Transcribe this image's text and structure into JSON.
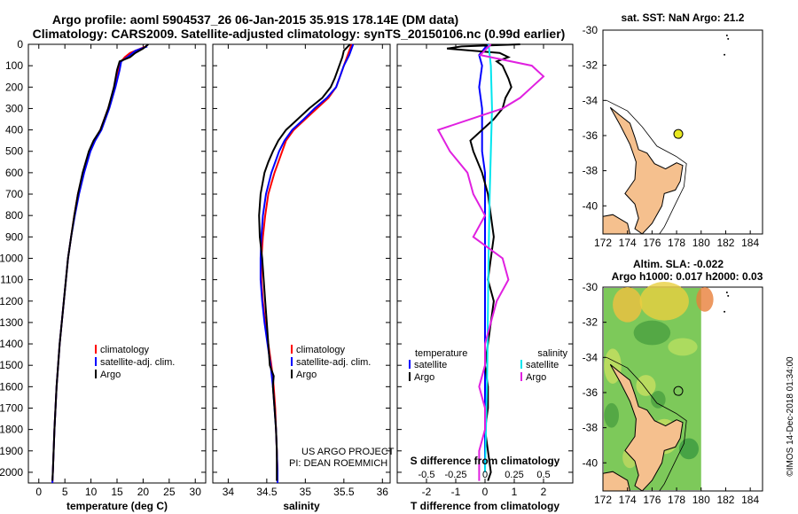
{
  "header": {
    "line1": "Argo profile: aoml 5904537_26 06-Jan-2015 35.91S 178.14E (DM data)",
    "line2": "Climatology: CARS2009. Satellite-adjusted climatology: synTS_20150106.nc (0.99d earlier)"
  },
  "credits": {
    "project": "US ARGO PROJECT",
    "pi": "PI: DEAN ROEMMICH",
    "imos": "©IMOS 14-Dec-2018 01:34:00"
  },
  "colors": {
    "climatology": "#ff0000",
    "satellite": "#0000ff",
    "argo": "#000000",
    "sal_satellite": "#00e5ee",
    "sal_argo": "#e020e0",
    "land": "#f5c08e",
    "marker": "#e8e820"
  },
  "chart_data": [
    {
      "id": "temperature",
      "type": "line",
      "xlabel": "temperature (deg C)",
      "ylabel": "",
      "xlim": [
        -2,
        32
      ],
      "ylim": [
        2050,
        0
      ],
      "xticks": [
        0,
        5,
        10,
        15,
        20,
        25,
        30
      ],
      "yticks": [
        0,
        100,
        200,
        300,
        400,
        500,
        600,
        700,
        800,
        900,
        1000,
        1100,
        1200,
        1300,
        1400,
        1500,
        1600,
        1700,
        1800,
        1900,
        2000
      ],
      "legend": [
        "climatology",
        "satellite-adj. clim.",
        "Argo"
      ],
      "series": [
        {
          "name": "climatology",
          "color": "#ff0000",
          "p": [
            10,
            40,
            60,
            80,
            120,
            200,
            300,
            400,
            450,
            500,
            600,
            700,
            800,
            900,
            1000,
            1200,
            1400,
            1600,
            1800,
            2000,
            2050
          ],
          "x": [
            20.5,
            17.5,
            16.5,
            15.8,
            15.3,
            14.5,
            13.3,
            11.8,
            10.6,
            9.7,
            8.5,
            7.5,
            6.8,
            6.2,
            5.6,
            4.8,
            4.0,
            3.4,
            3.0,
            2.7,
            2.6
          ]
        },
        {
          "name": "satellite-adj. clim.",
          "color": "#0000ff",
          "p": [
            10,
            30,
            60,
            80,
            120,
            200,
            300,
            400,
            450,
            500,
            600,
            700,
            800,
            900,
            1000,
            1200,
            1400,
            1600,
            1800,
            2000,
            2050
          ],
          "x": [
            20.8,
            18.5,
            17,
            15.8,
            15.5,
            14.7,
            13.5,
            12,
            10.8,
            9.9,
            8.7,
            7.7,
            6.9,
            6.2,
            5.6,
            4.8,
            4.0,
            3.4,
            3.0,
            2.7,
            2.6
          ]
        },
        {
          "name": "Argo",
          "color": "#000000",
          "p": [
            0,
            20,
            40,
            60,
            80,
            120,
            200,
            300,
            400,
            450,
            500,
            600,
            700,
            800,
            900,
            1000,
            1200,
            1400,
            1600,
            1800,
            2000,
            2040
          ],
          "x": [
            21,
            20,
            18.5,
            17.5,
            15.5,
            15.0,
            14.4,
            13.3,
            11.8,
            10.5,
            9.6,
            8.4,
            7.5,
            6.8,
            6.2,
            5.6,
            4.8,
            4.0,
            3.4,
            3.0,
            2.7,
            2.6
          ]
        }
      ]
    },
    {
      "id": "salinity",
      "type": "line",
      "xlabel": "salinity",
      "ylabel": "",
      "xlim": [
        33.8,
        36.1
      ],
      "ylim": [
        2050,
        0
      ],
      "xticks": [
        34,
        34.5,
        35,
        35.5,
        36
      ],
      "legend": [
        "climatology",
        "satellite-adj. clim.",
        "Argo"
      ],
      "series": [
        {
          "name": "climatology",
          "color": "#ff0000",
          "p": [
            0,
            50,
            100,
            150,
            200,
            250,
            300,
            350,
            400,
            450,
            500,
            600,
            700,
            800,
            900,
            1000,
            1100,
            1200,
            1300,
            1400,
            1500,
            1600,
            1700,
            1800,
            1900,
            2000,
            2050
          ],
          "x": [
            35.6,
            35.55,
            35.5,
            35.45,
            35.4,
            35.3,
            35.15,
            35.0,
            34.85,
            34.75,
            34.7,
            34.6,
            34.52,
            34.48,
            34.45,
            34.43,
            34.43,
            34.45,
            34.48,
            34.52,
            34.56,
            34.59,
            34.61,
            34.62,
            34.63,
            34.64,
            34.64
          ]
        },
        {
          "name": "satellite-adj. clim.",
          "color": "#0000ff",
          "p": [
            0,
            50,
            100,
            150,
            200,
            250,
            300,
            350,
            400,
            450,
            500,
            600,
            700,
            800,
            900,
            1000,
            1100,
            1200,
            1300,
            1400,
            1500,
            1600,
            1700,
            1800,
            1900,
            2000,
            2050
          ],
          "x": [
            35.62,
            35.57,
            35.5,
            35.45,
            35.4,
            35.28,
            35.12,
            34.98,
            34.83,
            34.73,
            34.66,
            34.56,
            34.49,
            34.45,
            34.43,
            34.42,
            34.42,
            34.44,
            34.47,
            34.51,
            34.55,
            34.58,
            34.6,
            34.62,
            34.63,
            34.64,
            34.64
          ]
        },
        {
          "name": "Argo",
          "color": "#000000",
          "p": [
            0,
            30,
            60,
            90,
            120,
            160,
            200,
            250,
            300,
            350,
            400,
            450,
            500,
            550,
            600,
            700,
            800,
            900,
            1000,
            1100,
            1200,
            1300,
            1400,
            1500,
            1550,
            1600,
            1700,
            1800,
            1900,
            2000,
            2040
          ],
          "x": [
            35.58,
            35.5,
            35.48,
            35.45,
            35.42,
            35.38,
            35.33,
            35.22,
            35.05,
            34.9,
            34.75,
            34.65,
            34.58,
            34.52,
            34.47,
            34.42,
            34.4,
            34.41,
            34.44,
            34.46,
            34.48,
            34.5,
            34.52,
            34.54,
            34.59,
            34.58,
            34.6,
            34.62,
            34.63,
            34.63,
            34.63
          ]
        }
      ]
    },
    {
      "id": "difference",
      "type": "line",
      "xlabel": "T difference from climatology",
      "xlabel2": "S difference from climatology",
      "ylabel": "",
      "xlim": [
        -3,
        3
      ],
      "ylim": [
        2050,
        0
      ],
      "xticks": [
        -2,
        -1,
        0,
        1,
        2
      ],
      "s_tick_labels": [
        "-0.5",
        "-0.25",
        "0",
        "0.25",
        "0.5"
      ],
      "legend_left_title": "temperature",
      "legend_right_title": "salinity",
      "legend_left": [
        "satellite",
        "Argo"
      ],
      "legend_right": [
        "satellite",
        "Argo"
      ],
      "series": [
        {
          "name": "T satellite",
          "color": "#0000ff",
          "p": [
            0,
            50,
            100,
            200,
            300,
            400,
            500,
            600,
            800,
            1000,
            1200,
            1400,
            1600,
            1800,
            2000
          ],
          "x": [
            0.1,
            -0.2,
            -0.1,
            -0.2,
            -0.1,
            -0.1,
            -0.1,
            0,
            0,
            0,
            0,
            0,
            0,
            0,
            0
          ]
        },
        {
          "name": "T Argo",
          "color": "#000000",
          "p": [
            0,
            10,
            20,
            40,
            60,
            80,
            100,
            130,
            160,
            200,
            250,
            300,
            350,
            400,
            450,
            500,
            600,
            700,
            800,
            900,
            1000,
            1100,
            1200,
            1300,
            1400,
            1500,
            1600,
            1700,
            1800,
            1900,
            2000,
            2040
          ],
          "x": [
            1.2,
            -0.8,
            -1.3,
            0.5,
            0.8,
            0.4,
            0.6,
            0.7,
            0.8,
            0.9,
            0.7,
            0.6,
            0.3,
            -0.1,
            -0.5,
            -0.4,
            -0.1,
            0.1,
            0.2,
            0.3,
            0.2,
            0.1,
            0.3,
            0.2,
            0.1,
            0.0,
            0.1,
            0.1,
            0.0,
            0.1,
            0.2,
            0.1
          ]
        },
        {
          "name": "S satellite",
          "color": "#00e5ee",
          "p": [
            0,
            100,
            300,
            500,
            700,
            1000,
            1500,
            2000
          ],
          "x": [
            0.03,
            0.05,
            0.06,
            0.05,
            0.04,
            0.03,
            0.02,
            0.0
          ]
        },
        {
          "name": "S Argo",
          "color": "#e020e0",
          "p": [
            0,
            50,
            100,
            150,
            200,
            250,
            300,
            400,
            500,
            600,
            700,
            800,
            900,
            1000,
            1100,
            1200,
            1300,
            1400,
            1500,
            1600,
            1700,
            1800,
            1900,
            2000,
            2040
          ],
          "x": [
            0.05,
            -0.04,
            0.4,
            0.5,
            0.4,
            0.3,
            0.15,
            -0.4,
            -0.3,
            -0.15,
            -0.1,
            0.0,
            -0.1,
            0.15,
            0.2,
            0.1,
            0.05,
            0.0,
            0.0,
            -0.05,
            0.0,
            0.0,
            -0.05,
            -0.05,
            -0.05
          ]
        }
      ]
    },
    {
      "id": "map_sst",
      "type": "map",
      "title": "sat. SST: NaN Argo: 21.2",
      "xlim": [
        172,
        185
      ],
      "ylim": [
        -41.6,
        -30
      ],
      "xticks": [
        172,
        174,
        176,
        178,
        180,
        182,
        184
      ],
      "yticks": [
        -30,
        -32,
        -34,
        -36,
        -38,
        -40
      ],
      "float_position": {
        "lon": 178.14,
        "lat": -35.91
      }
    },
    {
      "id": "map_sla",
      "type": "map",
      "title": "Altim. SLA: -0.022",
      "subtitle": "Argo h1000: 0.017 h2000: 0.03",
      "xlim": [
        172,
        185
      ],
      "ylim": [
        -41.6,
        -30
      ],
      "xticks": [
        172,
        174,
        176,
        178,
        180,
        182,
        184
      ],
      "yticks": [
        -30,
        -32,
        -34,
        -36,
        -38,
        -40
      ],
      "float_position": {
        "lon": 178.14,
        "lat": -35.91
      }
    }
  ]
}
